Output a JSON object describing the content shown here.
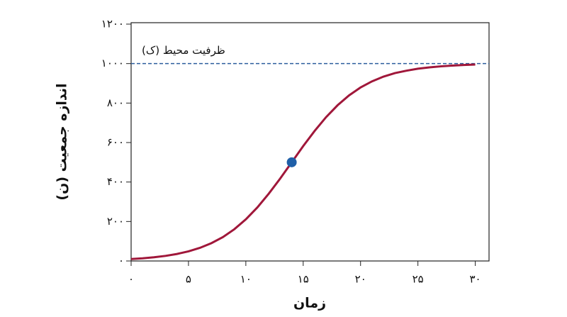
{
  "chart_data": {
    "type": "line",
    "xlabel": "زمان",
    "ylabel": "اندازه جمعیت (ن)",
    "xlim": [
      0,
      31.2
    ],
    "ylim": [
      0,
      1200
    ],
    "xticks": [
      {
        "value": 0,
        "label": "۰"
      },
      {
        "value": 5,
        "label": "۵"
      },
      {
        "value": 10,
        "label": "۱۰"
      },
      {
        "value": 15,
        "label": "۱۵"
      },
      {
        "value": 20,
        "label": "۲۰"
      },
      {
        "value": 25,
        "label": "۲۵"
      },
      {
        "value": 30,
        "label": "۳۰"
      }
    ],
    "yticks": [
      {
        "value": 0,
        "label": "۰"
      },
      {
        "value": 200,
        "label": "۲۰۰"
      },
      {
        "value": 400,
        "label": "۴۰۰"
      },
      {
        "value": 600,
        "label": "۶۰۰"
      },
      {
        "value": 800,
        "label": "۸۰۰"
      },
      {
        "value": 1000,
        "label": "۱۰۰۰"
      },
      {
        "value": 1200,
        "label": "۱۲۰۰"
      }
    ],
    "series": [
      {
        "color": "#a0173a",
        "x": [
          0,
          1,
          2,
          3,
          4,
          5,
          6,
          7,
          8,
          9,
          10,
          11,
          12,
          13,
          14,
          15,
          16,
          17,
          18,
          19,
          20,
          21,
          22,
          23,
          24,
          25,
          26,
          27,
          28,
          29,
          30
        ],
        "values": [
          9.8,
          13.5,
          18.7,
          25.8,
          35.6,
          48.8,
          66.6,
          90.3,
          121,
          161,
          211,
          271,
          341,
          418,
          500,
          582,
          659,
          729,
          789,
          839,
          879,
          910,
          934,
          952,
          964,
          974,
          981,
          986,
          990,
          993,
          995
        ]
      },
      {
        "type": "scatter",
        "color": "#1f5fa8",
        "x": [
          14
        ],
        "values": [
          500
        ]
      }
    ],
    "hline": {
      "value": 1000,
      "label": "ظرفیت محیط (ک)",
      "color": "#2c5e9e"
    }
  }
}
